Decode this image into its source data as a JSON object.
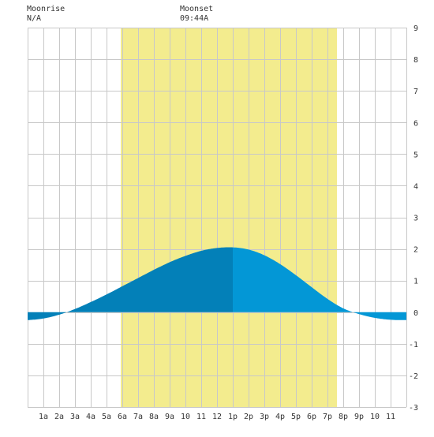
{
  "colors": {
    "background": "#ffffff",
    "daylight": "#f3ec8e",
    "grid": "#c8c8c8",
    "tide_past": "#0380b8",
    "tide_future": "#0397d6",
    "text": "#333333"
  },
  "header": {
    "moonrise": {
      "label": "Moonrise",
      "value": "N/A"
    },
    "moonset": {
      "label": "Moonset",
      "value": "09:44A"
    }
  },
  "chart_data": {
    "type": "area",
    "x_unit": "hour of day",
    "xlim": [
      0,
      24
    ],
    "ylim": [
      -3,
      9
    ],
    "y_ticks": [
      -3,
      -2,
      -1,
      0,
      1,
      2,
      3,
      4,
      5,
      6,
      7,
      8,
      9
    ],
    "x_ticks": [
      {
        "x": 1,
        "label": "1a"
      },
      {
        "x": 2,
        "label": "2a"
      },
      {
        "x": 3,
        "label": "3a"
      },
      {
        "x": 4,
        "label": "4a"
      },
      {
        "x": 5,
        "label": "5a"
      },
      {
        "x": 6,
        "label": "6a"
      },
      {
        "x": 7,
        "label": "7a"
      },
      {
        "x": 8,
        "label": "8a"
      },
      {
        "x": 9,
        "label": "9a"
      },
      {
        "x": 10,
        "label": "10"
      },
      {
        "x": 11,
        "label": "11"
      },
      {
        "x": 12,
        "label": "12"
      },
      {
        "x": 13,
        "label": "1p"
      },
      {
        "x": 14,
        "label": "2p"
      },
      {
        "x": 15,
        "label": "3p"
      },
      {
        "x": 16,
        "label": "4p"
      },
      {
        "x": 17,
        "label": "5p"
      },
      {
        "x": 18,
        "label": "6p"
      },
      {
        "x": 19,
        "label": "7p"
      },
      {
        "x": 20,
        "label": "8p"
      },
      {
        "x": 21,
        "label": "9p"
      },
      {
        "x": 22,
        "label": "10"
      },
      {
        "x": 23,
        "label": "11"
      }
    ],
    "daylight": {
      "start": 5.9,
      "end": 19.6
    },
    "current_time": 13.0,
    "grid": true,
    "tide": {
      "x": [
        0,
        1,
        2,
        3,
        4,
        5,
        6,
        7,
        8,
        9,
        10,
        11,
        12,
        13,
        14,
        15,
        16,
        17,
        18,
        19,
        20,
        21,
        22,
        23,
        24
      ],
      "y": [
        -0.25,
        -0.2,
        -0.08,
        0.1,
        0.32,
        0.56,
        0.82,
        1.08,
        1.34,
        1.58,
        1.78,
        1.94,
        2.03,
        2.05,
        1.98,
        1.8,
        1.52,
        1.17,
        0.79,
        0.42,
        0.12,
        -0.06,
        -0.18,
        -0.24,
        -0.25
      ]
    }
  }
}
